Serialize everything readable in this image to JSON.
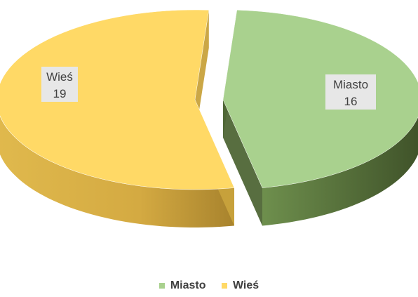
{
  "chart_data": {
    "type": "pie",
    "style": "3d-exploded",
    "categories": [
      "Miasto",
      "Wieś"
    ],
    "values": [
      16,
      19
    ],
    "colors": [
      "#a9d18e",
      "#ffd966"
    ],
    "side_colors": [
      "#4f6636",
      "#c8a23c"
    ],
    "data_labels": [
      {
        "name": "Miasto",
        "value": "16"
      },
      {
        "name": "Wieś",
        "value": "19"
      }
    ],
    "legend": {
      "position": "bottom"
    }
  }
}
